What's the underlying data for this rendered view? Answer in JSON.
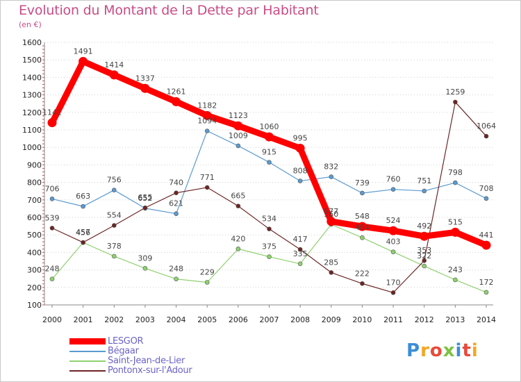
{
  "header": {
    "title": "Evolution du Montant de la Dette par Habitant",
    "unit": "(en €)"
  },
  "logo": {
    "text": "Proxiti"
  },
  "chart_data": {
    "type": "line",
    "title": "Evolution du Montant de la Dette par Habitant",
    "subtitle": "(en €)",
    "xlabel": "",
    "ylabel": "",
    "x": [
      2000,
      2001,
      2002,
      2003,
      2004,
      2005,
      2006,
      2007,
      2008,
      2009,
      2010,
      2011,
      2012,
      2013,
      2014
    ],
    "ylim": [
      100,
      1600
    ],
    "yticks": [
      100,
      200,
      300,
      400,
      500,
      600,
      700,
      800,
      900,
      1000,
      1100,
      1200,
      1300,
      1400,
      1500,
      1600
    ],
    "grid": "horizontal dotted",
    "legend_position": "bottom-left",
    "series": [
      {
        "name": "LESGOR",
        "color": "#ff0000",
        "values": [
          1141,
          1491,
          1414,
          1337,
          1261,
          1182,
          1123,
          1060,
          995,
          577,
          548,
          524,
          492,
          515,
          441
        ]
      },
      {
        "name": "Bégaar",
        "color": "#5a9ad0",
        "values": [
          706,
          663,
          756,
          652,
          621,
          1094,
          1009,
          915,
          808,
          832,
          739,
          760,
          751,
          798,
          708
        ]
      },
      {
        "name": "Saint-Jean-de-Lier",
        "color": "#8ed16f",
        "values": [
          248,
          456,
          378,
          309,
          248,
          229,
          420,
          375,
          335,
          560,
          484,
          403,
          322,
          243,
          172
        ]
      },
      {
        "name": "Pontonx-sur-l'Adour",
        "color": "#6d2525",
        "values": [
          539,
          457,
          554,
          655,
          740,
          771,
          665,
          534,
          417,
          285,
          222,
          170,
          353,
          1259,
          1064
        ]
      }
    ]
  }
}
